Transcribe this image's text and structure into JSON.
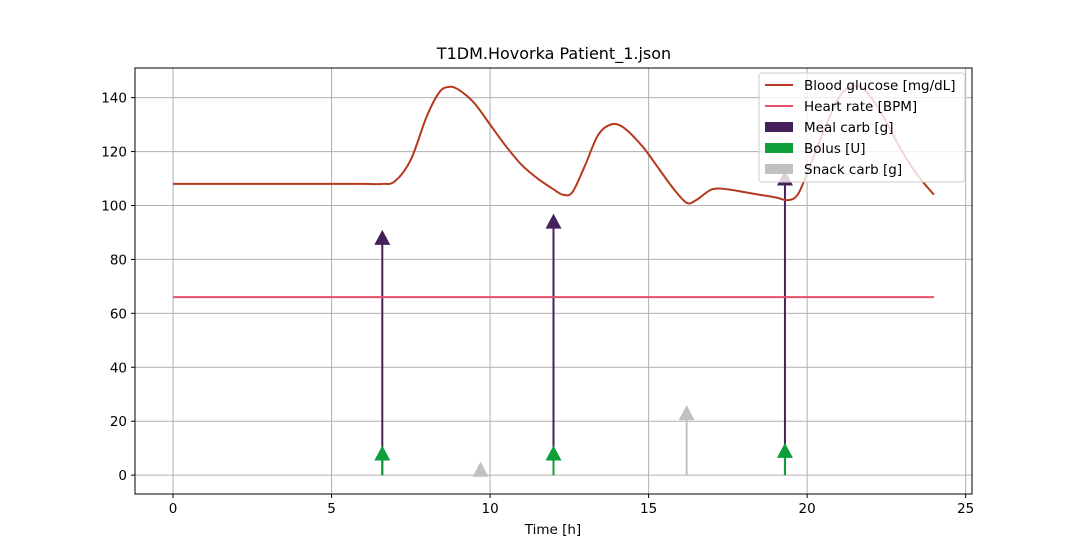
{
  "chart_data": {
    "type": "line",
    "title": "T1DM.Hovorka Patient_1.json",
    "xlabel": "Time [h]",
    "ylabel": "",
    "xlim": [
      -1.2,
      25.2
    ],
    "ylim": [
      -7,
      151
    ],
    "xticks": [
      0,
      5,
      10,
      15,
      20,
      25
    ],
    "yticks": [
      0,
      20,
      40,
      60,
      80,
      100,
      120,
      140
    ],
    "grid": true,
    "legend_position": "top-right",
    "series": [
      {
        "name": "Blood glucose [mg/dL]",
        "kind": "line",
        "color": "#b5391f",
        "x": [
          0,
          2,
          4,
          6,
          6.6,
          7,
          7.5,
          8,
          8.4,
          8.7,
          9,
          9.5,
          10,
          10.5,
          11,
          11.5,
          12,
          12.3,
          12.6,
          13,
          13.4,
          13.8,
          14.2,
          14.8,
          15.3,
          15.8,
          16.2,
          16.5,
          17,
          17.5,
          18,
          18.5,
          19,
          19.4,
          19.7,
          20,
          20.5,
          21,
          21.4,
          21.8,
          22.3,
          23,
          23.5,
          24
        ],
        "y": [
          108,
          108,
          108,
          108,
          108,
          109,
          117,
          133,
          142,
          144,
          143,
          138,
          130,
          122,
          115,
          110,
          106,
          104,
          105,
          115,
          126,
          130,
          129,
          122,
          114,
          106,
          101,
          102,
          106,
          106,
          105,
          104,
          103,
          102,
          104,
          112,
          127,
          140,
          144,
          143,
          135,
          120,
          111,
          104
        ]
      },
      {
        "name": "Heart rate [BPM]",
        "kind": "line",
        "color": "#e6506a",
        "x": [
          0,
          24
        ],
        "y": [
          66,
          66
        ]
      }
    ],
    "events": [
      {
        "name": "Meal carb [g]",
        "color": "#45215a",
        "x": [
          6.6,
          12.0,
          19.3
        ],
        "y": [
          88,
          94,
          110
        ]
      },
      {
        "name": "Bolus [U]",
        "color": "#0e9e3a",
        "x": [
          6.6,
          12.0,
          19.3
        ],
        "y": [
          8,
          8,
          9
        ]
      },
      {
        "name": "Snack carb [g]",
        "color": "#c0c0c0",
        "x": [
          9.7,
          16.2
        ],
        "y": [
          2,
          23
        ]
      }
    ],
    "legend": [
      {
        "label": "Blood glucose [mg/dL]",
        "kind": "line",
        "color": "#b5391f"
      },
      {
        "label": "Heart rate [BPM]",
        "kind": "line",
        "color": "#e6506a"
      },
      {
        "label": "Meal carb [g]",
        "kind": "patch",
        "color": "#45215a"
      },
      {
        "label": "Bolus [U]",
        "kind": "patch",
        "color": "#0e9e3a"
      },
      {
        "label": "Snack carb [g]",
        "kind": "patch",
        "color": "#c0c0c0"
      }
    ]
  }
}
